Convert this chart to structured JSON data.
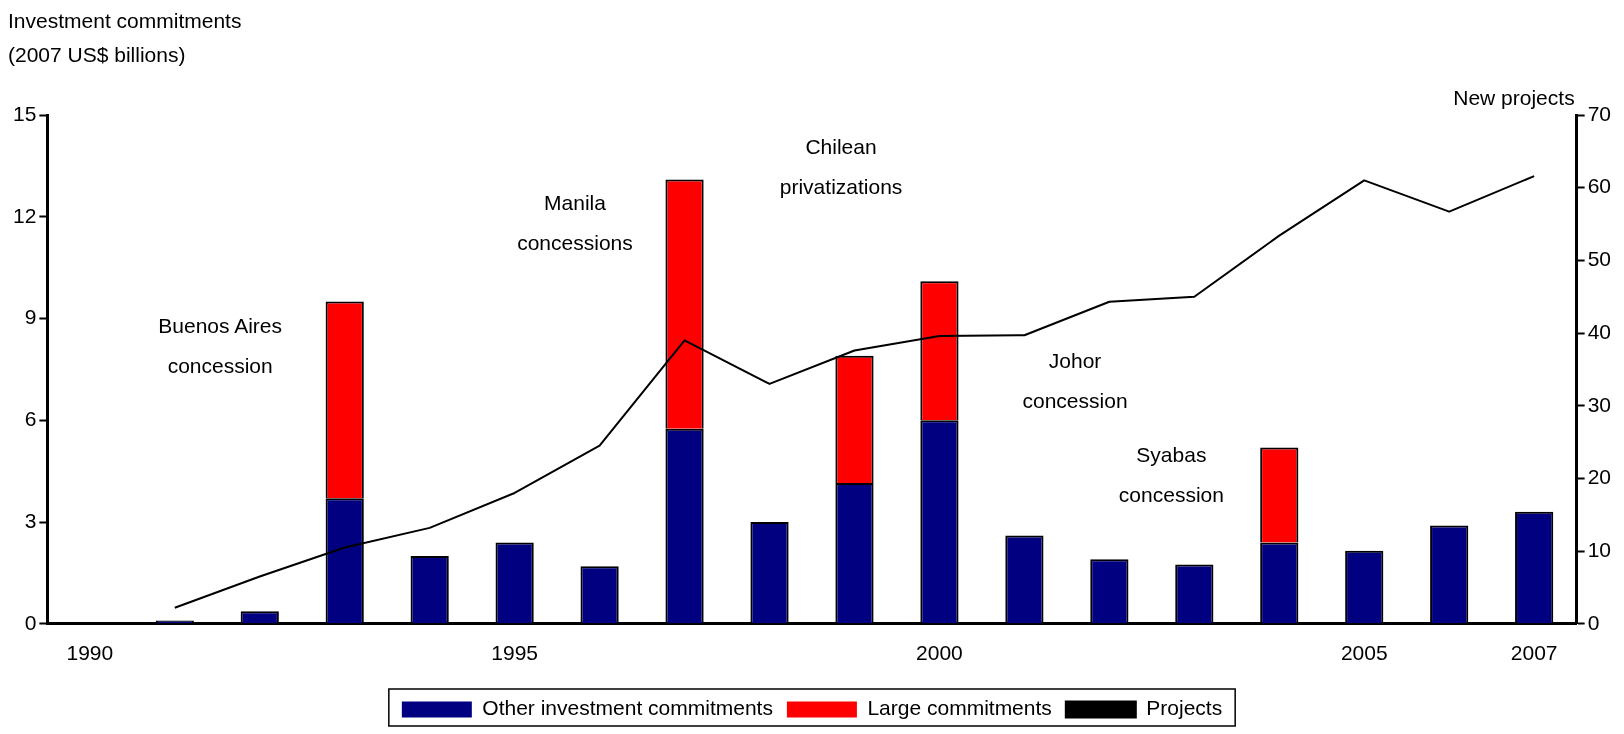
{
  "chart_data": {
    "type": "bar",
    "ylabel": "Investment commitments\n(2007 US$ billions)",
    "y2label": "New projects",
    "x": [
      1990,
      1991,
      1992,
      1993,
      1994,
      1995,
      1996,
      1997,
      1998,
      1999,
      2000,
      2001,
      2002,
      2003,
      2004,
      2005,
      2006,
      2007
    ],
    "stacked": true,
    "series": [
      {
        "name": "Other investment commitments",
        "color": "#000080",
        "values": [
          0,
          0.1,
          0.37,
          3.7,
          2.0,
          2.4,
          1.7,
          5.75,
          3.0,
          4.15,
          6.0,
          2.6,
          1.9,
          1.75,
          2.4,
          2.15,
          2.9,
          3.3
        ]
      },
      {
        "name": "Large commitments",
        "color": "#ff0000",
        "values": [
          0,
          0,
          0,
          5.8,
          0,
          0,
          0,
          7.35,
          0,
          3.75,
          4.1,
          0,
          0,
          0,
          2.8,
          0,
          0,
          0
        ]
      },
      {
        "name": "Projects",
        "type": "line",
        "axis": "y2",
        "color": "#000000",
        "values": [
          null,
          2.2,
          6.5,
          10.5,
          13.2,
          18,
          24.5,
          39,
          33,
          37.6,
          39.6,
          39.7,
          44.3,
          45,
          53.4,
          61,
          56.7,
          61.6
        ]
      }
    ],
    "xlim": [
      1989.5,
      2007.5
    ],
    "xticks": [
      1990,
      1995,
      2000,
      2005,
      2007
    ],
    "ylim": [
      0,
      15
    ],
    "yticks": [
      0,
      3,
      6,
      9,
      12,
      15
    ],
    "y2lim": [
      0,
      70
    ],
    "y2ticks": [
      0,
      10,
      20,
      30,
      40,
      50,
      60,
      70
    ],
    "grid": false,
    "legend": "bottom",
    "marker": "none",
    "line_style": "solid",
    "annotations": [
      "Buenos Aires\nconcession",
      "Manila\nconcessions",
      "Chilean\nprivatizations",
      "Johor\nconcession",
      "Syabas\nconcession"
    ]
  }
}
